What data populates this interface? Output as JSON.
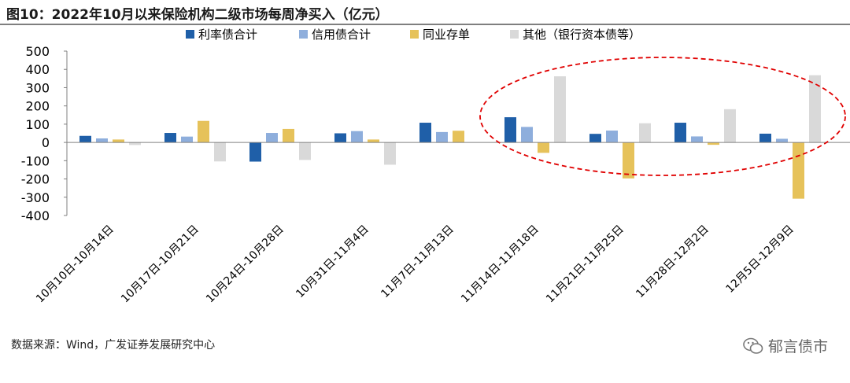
{
  "figure": {
    "title": "图10：2022年10月以来保险机构二级市场每周净买入（亿元）",
    "source": "数据来源：Wind，广发证券发展研究中心",
    "watermark": "郁言债市",
    "watermark_icon": "wechat-icon"
  },
  "colors": {
    "series": [
      "#1f5fa8",
      "#8eaedc",
      "#e6c25a",
      "#d9d9d9"
    ],
    "highlight": "#e00000",
    "axis": "#808080"
  },
  "chart_data": {
    "type": "bar",
    "title": "2022年10月以来保险机构二级市场每周净买入（亿元）",
    "xlabel": "",
    "ylabel": "",
    "ylim": [
      -400,
      500
    ],
    "yticks": [
      500,
      400,
      300,
      200,
      100,
      0,
      -100,
      -200,
      -300,
      -400
    ],
    "grid": false,
    "legend_position": "top",
    "categories": [
      "10月10日-10月14日",
      "10月17日-10月21日",
      "10月24日-10月28日",
      "10月31日-11月4日",
      "11月7日-11月13日",
      "11月14日-11月18日",
      "11月21日-11月25日",
      "11月28日-12月2日",
      "12月5日-12月9日"
    ],
    "series": [
      {
        "name": "利率债合计",
        "values": [
          36,
          52,
          -105,
          50,
          108,
          138,
          47,
          108,
          48
        ]
      },
      {
        "name": "信用债合计",
        "values": [
          22,
          32,
          52,
          62,
          57,
          85,
          65,
          33,
          20
        ]
      },
      {
        "name": "同业存单",
        "values": [
          16,
          118,
          74,
          16,
          64,
          -57,
          -197,
          -13,
          -308
        ]
      },
      {
        "name": "其他（银行资本债等）",
        "values": [
          -14,
          -104,
          -96,
          -122,
          0,
          362,
          105,
          182,
          368
        ]
      }
    ],
    "annotation": "red dashed ellipse highlighting 11月14日-11月18日 to 12月5日-12月9日"
  }
}
